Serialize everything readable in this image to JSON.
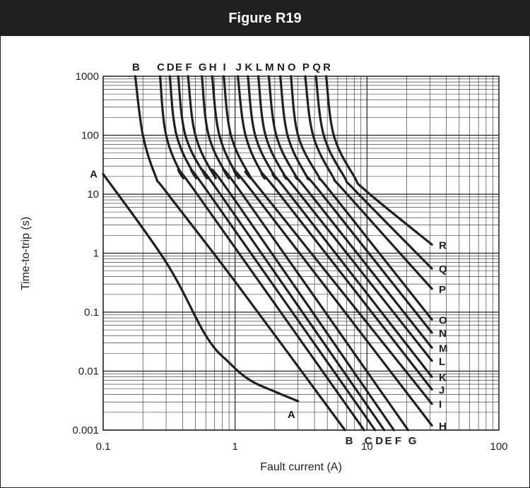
{
  "header": {
    "title": "Figure R19"
  },
  "chart_data": {
    "type": "line",
    "title": "Figure R19",
    "xlabel": "Fault current (A)",
    "ylabel": "Time-to-trip (s)",
    "xscale": "log",
    "yscale": "log",
    "xlim": [
      0.1,
      100
    ],
    "ylim": [
      0.001,
      1000
    ],
    "x_ticks": [
      "0.1",
      "1",
      "10",
      "100"
    ],
    "y_ticks": [
      "0.001",
      "0.01",
      "0.1",
      "1",
      "10",
      "100",
      "1000"
    ],
    "grid": true,
    "series": [
      {
        "name": "A",
        "points": [
          [
            0.1,
            22
          ],
          [
            0.3,
            0.7
          ],
          [
            0.6,
            0.04
          ],
          [
            0.9,
            0.014
          ],
          [
            1.3,
            0.007
          ],
          [
            2,
            0.0045
          ],
          [
            3,
            0.0031
          ]
        ]
      },
      {
        "name": "B",
        "points": [
          [
            0.175,
            1000
          ],
          [
            0.2,
            100
          ],
          [
            0.25,
            20
          ],
          [
            0.3,
            11
          ],
          [
            1,
            0.33
          ],
          [
            6.8,
            0.001
          ]
        ]
      },
      {
        "name": "C",
        "points": [
          [
            0.27,
            1000
          ],
          [
            0.3,
            100
          ],
          [
            0.4,
            20
          ],
          [
            0.5,
            11
          ],
          [
            9.5,
            0.001
          ]
        ]
      },
      {
        "name": "D",
        "points": [
          [
            0.32,
            1000
          ],
          [
            0.36,
            100
          ],
          [
            0.5,
            20
          ],
          [
            0.62,
            11
          ],
          [
            11.5,
            0.001
          ]
        ]
      },
      {
        "name": "E",
        "points": [
          [
            0.37,
            1000
          ],
          [
            0.42,
            100
          ],
          [
            0.6,
            20
          ],
          [
            0.75,
            11
          ],
          [
            13.5,
            0.001
          ]
        ]
      },
      {
        "name": "F",
        "points": [
          [
            0.44,
            1000
          ],
          [
            0.5,
            100
          ],
          [
            0.7,
            20
          ],
          [
            0.9,
            11
          ],
          [
            16,
            0.001
          ]
        ]
      },
      {
        "name": "G",
        "points": [
          [
            0.56,
            1000
          ],
          [
            0.63,
            100
          ],
          [
            0.88,
            20
          ],
          [
            1.1,
            11
          ],
          [
            20.5,
            0.001
          ]
        ]
      },
      {
        "name": "H",
        "points": [
          [
            0.67,
            1000
          ],
          [
            0.76,
            100
          ],
          [
            1.05,
            20
          ],
          [
            1.35,
            11
          ],
          [
            31,
            0.0012
          ]
        ]
      },
      {
        "name": "I",
        "points": [
          [
            0.82,
            1000
          ],
          [
            0.93,
            100
          ],
          [
            1.3,
            20
          ],
          [
            1.6,
            11
          ],
          [
            31,
            0.0028
          ]
        ]
      },
      {
        "name": "J",
        "points": [
          [
            1.05,
            1000
          ],
          [
            1.2,
            100
          ],
          [
            1.65,
            20
          ],
          [
            2.1,
            11
          ],
          [
            31,
            0.0049
          ]
        ]
      },
      {
        "name": "K",
        "points": [
          [
            1.25,
            1000
          ],
          [
            1.42,
            100
          ],
          [
            2,
            20
          ],
          [
            2.5,
            11
          ],
          [
            31,
            0.008
          ]
        ]
      },
      {
        "name": "L",
        "points": [
          [
            1.5,
            1000
          ],
          [
            1.7,
            100
          ],
          [
            2.4,
            20
          ],
          [
            3,
            11
          ],
          [
            31,
            0.015
          ]
        ]
      },
      {
        "name": "M",
        "points": [
          [
            1.8,
            1000
          ],
          [
            2.05,
            100
          ],
          [
            2.9,
            20
          ],
          [
            3.6,
            11
          ],
          [
            31,
            0.025
          ]
        ]
      },
      {
        "name": "N",
        "points": [
          [
            2.2,
            1000
          ],
          [
            2.5,
            100
          ],
          [
            3.5,
            20
          ],
          [
            4.4,
            11
          ],
          [
            31,
            0.045
          ]
        ]
      },
      {
        "name": "O",
        "points": [
          [
            2.65,
            1000
          ],
          [
            3,
            100
          ],
          [
            4.3,
            20
          ],
          [
            5.3,
            11
          ],
          [
            31,
            0.075
          ]
        ]
      },
      {
        "name": "P",
        "points": [
          [
            3.4,
            1000
          ],
          [
            3.9,
            100
          ],
          [
            5.5,
            20
          ],
          [
            6.8,
            11
          ],
          [
            31,
            0.25
          ]
        ]
      },
      {
        "name": "Q",
        "points": [
          [
            4.1,
            1000
          ],
          [
            4.7,
            100
          ],
          [
            6.7,
            20
          ],
          [
            8.3,
            11
          ],
          [
            31,
            0.55
          ]
        ]
      },
      {
        "name": "R",
        "points": [
          [
            4.9,
            1000
          ],
          [
            5.6,
            100
          ],
          [
            8,
            20
          ],
          [
            10,
            11
          ],
          [
            31,
            1.4
          ]
        ]
      }
    ]
  }
}
